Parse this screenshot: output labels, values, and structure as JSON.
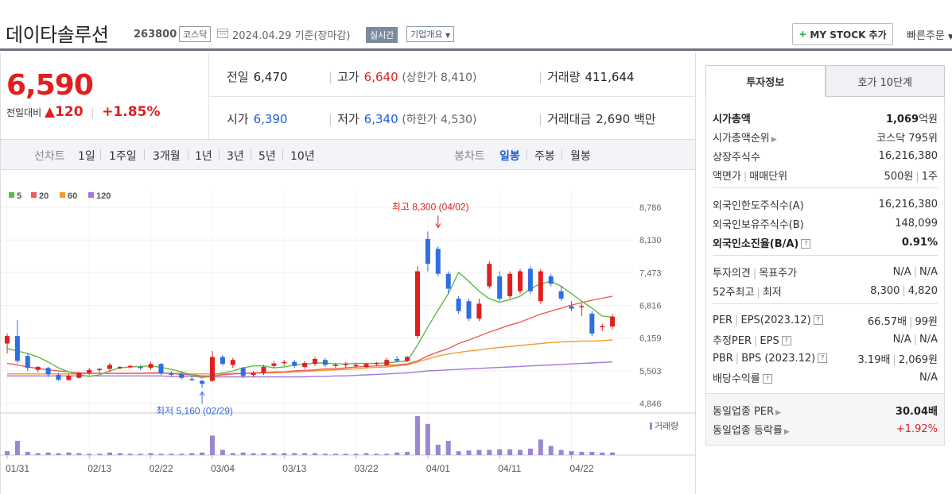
{
  "header": {
    "name": "데이타솔루션",
    "code": "263800",
    "market": "코스닥",
    "date": "2024.04.29 기준(장마감)",
    "realtime_label": "실시간",
    "overview_label": "기업개요",
    "mystock_label": "MY STOCK 추가",
    "quick_order_label": "빠른주문"
  },
  "summary": {
    "price": "6,590",
    "change_label": "전일대비",
    "change_value": "120",
    "change_pct": "+1.85%",
    "prev_label": "전일",
    "prev_value": "6,470",
    "high_label": "고가",
    "high_value": "6,640",
    "upper_limit": "(상한가 8,410)",
    "volume_label": "거래량",
    "volume_value": "411,644",
    "open_label": "시가",
    "open_value": "6,390",
    "low_label": "저가",
    "low_value": "6,340",
    "lower_limit": "(하한가 4,530)",
    "amount_label": "거래대금",
    "amount_value": "2,690",
    "amount_unit": "백만"
  },
  "periods": {
    "line_label": "선차트",
    "line_items": [
      "1일",
      "1주일",
      "3개월",
      "1년",
      "3년",
      "5년",
      "10년"
    ],
    "candle_label": "봉차트",
    "candle_items": [
      "일봉",
      "주봉",
      "월봉"
    ],
    "candle_selected": "일봉"
  },
  "colors": {
    "up": "#e01f1f",
    "down": "#2f6ee0",
    "ma5": "#5dbb4a",
    "ma20": "#ee5b5b",
    "ma60": "#f39a2c",
    "ma120": "#a678d6",
    "volume": "#9b86cf"
  },
  "chart_data": {
    "type": "candlestick",
    "legend": [
      {
        "name": "5",
        "color": "#5dbb4a"
      },
      {
        "name": "20",
        "color": "#ee5b5b"
      },
      {
        "name": "60",
        "color": "#f39a2c"
      },
      {
        "name": "120",
        "color": "#a678d6"
      }
    ],
    "y_ticks": [
      8786,
      8130,
      7473,
      6816,
      6159,
      5503,
      4846
    ],
    "y_tick_labels": [
      "8,786",
      "8,130",
      "7,473",
      "6,816",
      "6,159",
      "5,503",
      "4,846"
    ],
    "ylim": [
      4846,
      8786
    ],
    "x_labels": [
      "01/31",
      "02/13",
      "02/22",
      "03/04",
      "03/13",
      "03/22",
      "04/01",
      "04/11",
      "04/22"
    ],
    "x_label_index": [
      0,
      8,
      14,
      20,
      27,
      34,
      41,
      48,
      55
    ],
    "volume_label": "거래량",
    "annotations": [
      {
        "text": "최고 8,300 (04/02)",
        "index": 42,
        "value": 8300,
        "kind": "high"
      },
      {
        "text": "최저 5,160 (02/29)",
        "index": 19,
        "value": 5160,
        "kind": "low"
      }
    ],
    "candles": [
      {
        "o": 6050,
        "h": 6250,
        "l": 5850,
        "c": 6200
      },
      {
        "o": 6200,
        "h": 6520,
        "l": 5650,
        "c": 5700
      },
      {
        "o": 5800,
        "h": 5850,
        "l": 5500,
        "c": 5560
      },
      {
        "o": 5520,
        "h": 5600,
        "l": 5470,
        "c": 5580
      },
      {
        "o": 5560,
        "h": 5580,
        "l": 5380,
        "c": 5430
      },
      {
        "o": 5420,
        "h": 5460,
        "l": 5300,
        "c": 5320
      },
      {
        "o": 5320,
        "h": 5440,
        "l": 5300,
        "c": 5400
      },
      {
        "o": 5360,
        "h": 5480,
        "l": 5350,
        "c": 5460
      },
      {
        "o": 5460,
        "h": 5560,
        "l": 5420,
        "c": 5520
      },
      {
        "o": 5520,
        "h": 5560,
        "l": 5460,
        "c": 5540
      },
      {
        "o": 5540,
        "h": 5660,
        "l": 5480,
        "c": 5620
      },
      {
        "o": 5560,
        "h": 5600,
        "l": 5530,
        "c": 5580
      },
      {
        "o": 5580,
        "h": 5620,
        "l": 5550,
        "c": 5600
      },
      {
        "o": 5580,
        "h": 5620,
        "l": 5520,
        "c": 5560
      },
      {
        "o": 5560,
        "h": 5680,
        "l": 5520,
        "c": 5640
      },
      {
        "o": 5640,
        "h": 5660,
        "l": 5420,
        "c": 5450
      },
      {
        "o": 5450,
        "h": 5500,
        "l": 5380,
        "c": 5420
      },
      {
        "o": 5440,
        "h": 5480,
        "l": 5330,
        "c": 5360
      },
      {
        "o": 5340,
        "h": 5400,
        "l": 5300,
        "c": 5330
      },
      {
        "o": 5300,
        "h": 5320,
        "l": 5160,
        "c": 5240
      },
      {
        "o": 5300,
        "h": 5900,
        "l": 5280,
        "c": 5780
      },
      {
        "o": 5780,
        "h": 5820,
        "l": 5600,
        "c": 5640
      },
      {
        "o": 5620,
        "h": 5760,
        "l": 5560,
        "c": 5720
      },
      {
        "o": 5560,
        "h": 5580,
        "l": 5360,
        "c": 5400
      },
      {
        "o": 5420,
        "h": 5500,
        "l": 5380,
        "c": 5460
      },
      {
        "o": 5460,
        "h": 5620,
        "l": 5420,
        "c": 5580
      },
      {
        "o": 5600,
        "h": 5700,
        "l": 5560,
        "c": 5650
      },
      {
        "o": 5660,
        "h": 5720,
        "l": 5600,
        "c": 5680
      },
      {
        "o": 5680,
        "h": 5720,
        "l": 5560,
        "c": 5600
      },
      {
        "o": 5580,
        "h": 5700,
        "l": 5540,
        "c": 5660
      },
      {
        "o": 5640,
        "h": 5780,
        "l": 5600,
        "c": 5740
      },
      {
        "o": 5720,
        "h": 5760,
        "l": 5580,
        "c": 5620
      },
      {
        "o": 5600,
        "h": 5660,
        "l": 5560,
        "c": 5620
      },
      {
        "o": 5620,
        "h": 5680,
        "l": 5560,
        "c": 5640
      },
      {
        "o": 5600,
        "h": 5660,
        "l": 5560,
        "c": 5620
      },
      {
        "o": 5580,
        "h": 5660,
        "l": 5560,
        "c": 5640
      },
      {
        "o": 5640,
        "h": 5680,
        "l": 5600,
        "c": 5660
      },
      {
        "o": 5620,
        "h": 5760,
        "l": 5600,
        "c": 5720
      },
      {
        "o": 5740,
        "h": 5800,
        "l": 5680,
        "c": 5700
      },
      {
        "o": 5700,
        "h": 5800,
        "l": 5680,
        "c": 5780
      },
      {
        "o": 6200,
        "h": 7600,
        "l": 6150,
        "c": 7500
      },
      {
        "o": 8150,
        "h": 8300,
        "l": 7500,
        "c": 7650
      },
      {
        "o": 7950,
        "h": 8000,
        "l": 7400,
        "c": 7450
      },
      {
        "o": 7450,
        "h": 7500,
        "l": 7050,
        "c": 7150
      },
      {
        "o": 6950,
        "h": 7000,
        "l": 6650,
        "c": 6700
      },
      {
        "o": 6900,
        "h": 6950,
        "l": 6500,
        "c": 6550
      },
      {
        "o": 6550,
        "h": 6950,
        "l": 6500,
        "c": 6850
      },
      {
        "o": 7200,
        "h": 7700,
        "l": 7150,
        "c": 7650
      },
      {
        "o": 7400,
        "h": 7500,
        "l": 6900,
        "c": 6950
      },
      {
        "o": 7000,
        "h": 7500,
        "l": 6950,
        "c": 7450
      },
      {
        "o": 7100,
        "h": 7550,
        "l": 7050,
        "c": 7500
      },
      {
        "o": 7550,
        "h": 7600,
        "l": 7050,
        "c": 7100
      },
      {
        "o": 6900,
        "h": 7550,
        "l": 6850,
        "c": 7500
      },
      {
        "o": 7400,
        "h": 7450,
        "l": 7200,
        "c": 7250
      },
      {
        "o": 7100,
        "h": 7200,
        "l": 6900,
        "c": 6950
      },
      {
        "o": 6800,
        "h": 6900,
        "l": 6700,
        "c": 6750
      },
      {
        "o": 6800,
        "h": 6850,
        "l": 6600,
        "c": 6800
      },
      {
        "o": 6650,
        "h": 6700,
        "l": 6200,
        "c": 6250
      },
      {
        "o": 6400,
        "h": 6450,
        "l": 6300,
        "c": 6400
      },
      {
        "o": 6390,
        "h": 6640,
        "l": 6340,
        "c": 6590
      }
    ],
    "ma5": [
      5950,
      5900,
      5850,
      5780,
      5680,
      5560,
      5480,
      5420,
      5390,
      5420,
      5500,
      5560,
      5580,
      5590,
      5600,
      5570,
      5530,
      5480,
      5420,
      5360,
      5420,
      5460,
      5500,
      5560,
      5600,
      5600,
      5560,
      5580,
      5620,
      5630,
      5660,
      5660,
      5640,
      5640,
      5650,
      5650,
      5650,
      5660,
      5680,
      5700,
      6020,
      6380,
      6720,
      7050,
      7480,
      7300,
      7100,
      6950,
      6880,
      6930,
      7000,
      7150,
      7250,
      7300,
      7200,
      7050,
      6900,
      6760,
      6600,
      6580
    ],
    "ma20": [
      5650,
      5620,
      5580,
      5550,
      5520,
      5500,
      5480,
      5460,
      5450,
      5450,
      5450,
      5450,
      5450,
      5450,
      5460,
      5460,
      5450,
      5430,
      5420,
      5400,
      5400,
      5420,
      5440,
      5450,
      5460,
      5470,
      5480,
      5480,
      5500,
      5510,
      5520,
      5540,
      5540,
      5560,
      5580,
      5590,
      5600,
      5610,
      5620,
      5640,
      5700,
      5800,
      5880,
      5950,
      6050,
      6120,
      6200,
      6280,
      6350,
      6420,
      6480,
      6560,
      6640,
      6700,
      6760,
      6820,
      6870,
      6920,
      6960,
      7000
    ],
    "ma60": [
      5440,
      5440,
      5440,
      5440,
      5440,
      5440,
      5440,
      5440,
      5450,
      5450,
      5450,
      5450,
      5450,
      5450,
      5450,
      5450,
      5450,
      5450,
      5440,
      5440,
      5440,
      5440,
      5450,
      5450,
      5450,
      5460,
      5460,
      5470,
      5480,
      5490,
      5500,
      5510,
      5520,
      5530,
      5540,
      5560,
      5570,
      5580,
      5600,
      5620,
      5680,
      5740,
      5800,
      5840,
      5870,
      5900,
      5920,
      5950,
      5970,
      5990,
      6010,
      6030,
      6050,
      6070,
      6080,
      6090,
      6100,
      6100,
      6110,
      6120
    ],
    "ma120": [
      5400,
      5400,
      5400,
      5400,
      5400,
      5400,
      5400,
      5400,
      5400,
      5400,
      5400,
      5400,
      5400,
      5400,
      5400,
      5400,
      5390,
      5390,
      5390,
      5380,
      5380,
      5380,
      5380,
      5380,
      5380,
      5380,
      5380,
      5380,
      5380,
      5380,
      5390,
      5390,
      5400,
      5400,
      5410,
      5420,
      5430,
      5440,
      5450,
      5460,
      5480,
      5500,
      5510,
      5520,
      5530,
      5540,
      5550,
      5560,
      5570,
      5580,
      5590,
      5600,
      5610,
      5620,
      5630,
      5640,
      5650,
      5660,
      5670,
      5680
    ],
    "volumes": [
      6,
      22,
      5,
      3,
      4,
      3,
      4,
      3,
      2,
      2,
      4,
      3,
      2,
      2,
      3,
      2,
      2,
      2,
      3,
      4,
      30,
      8,
      3,
      4,
      3,
      3,
      3,
      3,
      3,
      3,
      3,
      2,
      2,
      2,
      2,
      3,
      2,
      2,
      4,
      5,
      60,
      48,
      16,
      22,
      6,
      7,
      8,
      8,
      9,
      9,
      8,
      10,
      24,
      14,
      8,
      6,
      5,
      5,
      4,
      4
    ],
    "volume_max": 60
  },
  "side": {
    "tab_info": "투자정보",
    "tab_order": "호가 10단계",
    "market_cap_label": "시가총액",
    "market_cap_value": "1,069",
    "market_cap_unit": "억원",
    "rank_label": "시가총액순위",
    "rank_value": "코스닥 795위",
    "shares_label": "상장주식수",
    "shares_value": "16,216,380",
    "face_label": "액면가",
    "unit_label": "매매단위",
    "face_value": "500원",
    "unit_value": "1주",
    "foreign_limit_label": "외국인한도주식수(A)",
    "foreign_limit_value": "16,216,380",
    "foreign_hold_label": "외국인보유주식수(B)",
    "foreign_hold_value": "148,099",
    "foreign_ratio_label": "외국인소진율(B/A)",
    "foreign_ratio_value": "0.91%",
    "opinion_label": "투자의견",
    "target_label": "목표주가",
    "opinion_value": "N/A",
    "target_value": "N/A",
    "w52_high_label": "52주최고",
    "w52_low_label": "최저",
    "w52_high_value": "8,300",
    "w52_low_value": "4,820",
    "per_label": "PER",
    "eps_label": "EPS(2023.12)",
    "per_value": "66.57배",
    "eps_value": "99원",
    "est_per_label": "추정PER",
    "est_eps_label": "EPS",
    "est_per_value": "N/A",
    "est_eps_value": "N/A",
    "pbr_label": "PBR",
    "bps_label": "BPS (2023.12)",
    "pbr_value": "3.19배",
    "bps_value": "2,069원",
    "dividend_label": "배당수익률",
    "dividend_value": "N/A",
    "sector_per_label": "동일업종 PER",
    "sector_per_value": "30.04배",
    "sector_rate_label": "동일업종 등락률",
    "sector_rate_value": "+1.92%"
  }
}
